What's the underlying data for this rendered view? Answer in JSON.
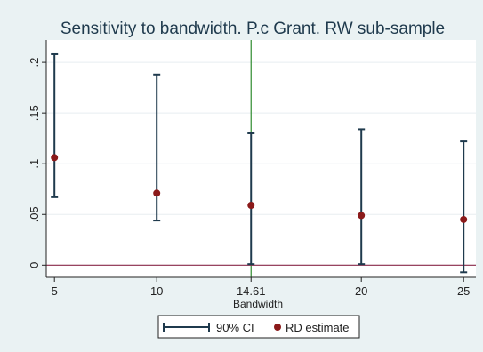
{
  "chart_data": {
    "type": "scatter",
    "title": "Sensitivity to bandwidth. P.c Grant. RW sub-sample",
    "xlabel": "Bandwidth",
    "ylabel": "",
    "x_ticks": [
      "5",
      "10",
      "14.61",
      "20",
      "25"
    ],
    "y_ticks": [
      "0",
      ".05",
      ".1",
      ".15",
      ".2"
    ],
    "xlim": [
      4.6,
      25.6
    ],
    "ylim": [
      -0.012,
      0.222
    ],
    "reference_lines": {
      "vertical_x": 14.61,
      "horizontal_y": 0
    },
    "grid": "horizontal",
    "legend_position": "bottom",
    "series": [
      {
        "name": "RD estimate",
        "x": [
          5,
          10,
          14.61,
          20,
          25
        ],
        "y": [
          0.106,
          0.071,
          0.059,
          0.049,
          0.045
        ]
      },
      {
        "name": "90% CI",
        "x": [
          5,
          10,
          14.61,
          20,
          25
        ],
        "lower": [
          0.067,
          0.044,
          0.001,
          0.001,
          -0.007
        ],
        "upper": [
          0.208,
          0.188,
          0.13,
          0.134,
          0.122
        ]
      }
    ]
  },
  "legend": {
    "ci_label": "90% CI",
    "est_label": "RD estimate"
  },
  "colors": {
    "background": "#eaf2f3",
    "plot_background": "#ffffff",
    "ci_color": "#1f3a4d",
    "estimate_color": "#8b1a1a",
    "vline_color": "#2e8b2e",
    "hline_color": "#8b2a4a",
    "grid_color": "#e8eef0"
  }
}
